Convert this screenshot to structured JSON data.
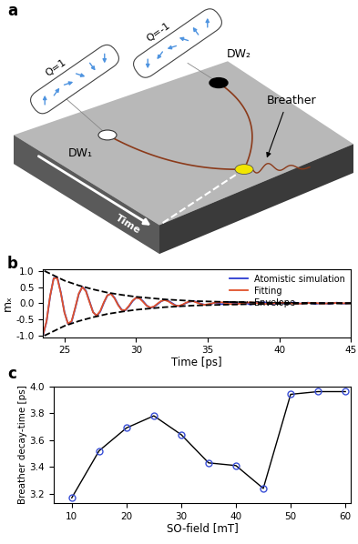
{
  "diagram": {
    "panel_label": "a",
    "labels": {
      "q1": "Q=1",
      "q2": "Q=-1",
      "dw1": "DW₁",
      "dw2": "DW₂",
      "breather": "Breather",
      "time": "Time"
    }
  },
  "chart_data": [
    {
      "type": "line",
      "title": "b",
      "xlabel": "Time [ps]",
      "ylabel": "mₓ",
      "x": [
        23.5,
        23.75,
        24.0,
        24.25,
        24.5,
        24.75,
        25.0,
        25.25,
        25.5,
        25.75,
        26.0,
        26.25,
        26.5,
        26.75,
        27.0,
        27.25,
        27.5,
        27.75,
        28.0,
        28.25,
        28.5,
        28.75,
        29.0,
        29.25,
        29.5,
        29.75,
        30.0,
        30.25,
        30.5,
        30.75,
        31.0,
        31.25,
        31.5,
        31.75,
        32.0,
        32.25,
        32.5,
        32.75,
        33.0,
        33.25,
        33.5,
        33.75,
        34.0,
        34.25,
        34.5,
        34.75,
        35.0,
        35.25,
        35.5,
        36.0,
        36.5,
        37.0,
        37.5,
        38.0,
        38.5,
        39.0,
        39.5,
        40.0,
        40.5,
        41.0,
        41.5,
        42.0,
        42.5,
        43.0,
        43.5,
        44.0,
        44.5,
        45.0
      ],
      "series": [
        {
          "name": "Atomistic simulation",
          "color": "#2b3bd1",
          "values": [
            -1.0,
            -0.57,
            0.21,
            0.78,
            0.8,
            0.33,
            -0.27,
            -0.64,
            -0.57,
            -0.16,
            0.28,
            0.51,
            0.39,
            0.06,
            -0.27,
            -0.39,
            -0.26,
            0.01,
            0.24,
            0.3,
            0.17,
            -0.04,
            -0.2,
            -0.22,
            -0.1,
            0.06,
            0.17,
            0.16,
            0.06,
            -0.07,
            -0.14,
            -0.11,
            -0.03,
            0.06,
            0.11,
            0.08,
            0.01,
            -0.06,
            -0.09,
            -0.05,
            0.01,
            0.05,
            0.07,
            0.04,
            -0.01,
            -0.04,
            -0.05,
            -0.02,
            0.02,
            -0.03,
            0.04,
            -0.02,
            0.03,
            -0.04,
            0.02,
            0.03,
            -0.03,
            0.02,
            -0.02,
            0.03,
            -0.01,
            0.02,
            -0.02,
            0.01,
            -0.02,
            0.02,
            -0.01,
            0.01
          ]
        },
        {
          "name": "Fitting",
          "color": "#e0522b",
          "values": [
            -0.98,
            -0.55,
            0.23,
            0.77,
            0.78,
            0.31,
            -0.29,
            -0.63,
            -0.55,
            -0.14,
            0.3,
            0.5,
            0.37,
            0.04,
            -0.28,
            -0.38,
            -0.24,
            0.03,
            0.25,
            0.29,
            0.15,
            -0.06,
            -0.21,
            -0.21,
            -0.08,
            0.08,
            0.17,
            0.15,
            0.04,
            -0.08,
            -0.13,
            -0.1,
            -0.01,
            0.07,
            0.1,
            0.06,
            -0.01,
            -0.07,
            -0.08,
            -0.04,
            0.02,
            0.06,
            0.06,
            0.02,
            -0.02,
            -0.05,
            -0.03,
            -0.01,
            0.02,
            0.03,
            -0.02,
            -0.03,
            0.01,
            0.03,
            0.0,
            -0.02,
            -0.01,
            0.02,
            0.01,
            -0.01,
            -0.01,
            0.01,
            0.01,
            -0.01,
            0.0,
            0.01,
            0.0,
            0.0
          ]
        },
        {
          "name": "Envelope",
          "color": "#000000",
          "line_style": "dashed",
          "x": [
            23.6,
            25,
            26,
            27,
            28,
            29,
            30,
            32,
            34,
            36,
            38,
            40,
            42,
            45
          ],
          "values": [
            1.0,
            0.7,
            0.55,
            0.43,
            0.33,
            0.26,
            0.2,
            0.12,
            0.07,
            0.045,
            0.027,
            0.017,
            0.01,
            0.005
          ]
        },
        {
          "color": "#000000",
          "line_style": "dashed",
          "x": [
            23.6,
            25,
            26,
            27,
            28,
            29,
            30,
            32,
            34,
            36,
            38,
            40,
            42,
            45
          ],
          "values": [
            -1.0,
            -0.7,
            -0.55,
            -0.43,
            -0.33,
            -0.26,
            -0.2,
            -0.12,
            -0.07,
            -0.045,
            -0.027,
            -0.017,
            -0.01,
            -0.005
          ]
        }
      ],
      "xlim": [
        23.5,
        45
      ],
      "ylim": [
        -1.05,
        1.05
      ],
      "xticks": [
        25,
        30,
        35,
        40,
        45
      ],
      "yticks": [
        -1.0,
        -0.5,
        0.0,
        0.5,
        1.0
      ],
      "legend": "upper right"
    },
    {
      "type": "line",
      "title": "c",
      "xlabel": "SO-field [mT]",
      "ylabel": "Breather decay-time [ps]",
      "x": [
        10,
        15,
        20,
        25,
        30,
        35,
        40,
        45,
        50,
        55,
        60
      ],
      "series": [
        {
          "color": "#000000",
          "marker": "circle",
          "values": [
            3.17,
            3.52,
            3.69,
            3.78,
            3.64,
            3.43,
            3.41,
            3.24,
            3.94,
            3.96,
            3.96
          ]
        }
      ],
      "xlim": [
        6.7,
        61
      ],
      "ylim": [
        3.13,
        4.0
      ],
      "xticks": [
        10,
        20,
        30,
        40,
        50,
        60
      ],
      "yticks": [
        3.2,
        3.4,
        3.6,
        3.8,
        4.0
      ]
    }
  ]
}
